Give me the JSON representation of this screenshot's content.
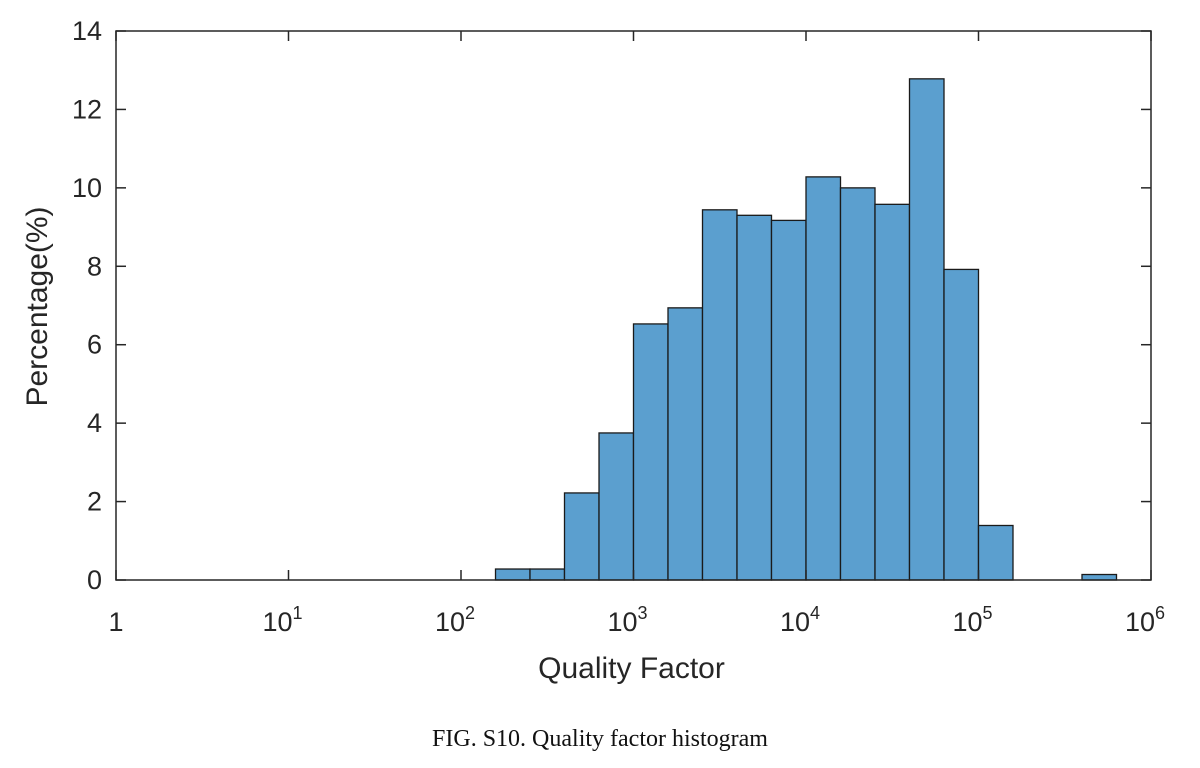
{
  "chart_data": {
    "type": "bar",
    "xlabel": "Quality Factor",
    "ylabel": "Percentage(%)",
    "x_scale": "log",
    "xlim": [
      1,
      1000000
    ],
    "ylim": [
      0,
      14
    ],
    "grid": false,
    "legend": "none",
    "x_ticks": [
      {
        "value": 1,
        "base": "1",
        "exp": ""
      },
      {
        "value": 10,
        "base": "10",
        "exp": "1"
      },
      {
        "value": 100,
        "base": "10",
        "exp": "2"
      },
      {
        "value": 1000,
        "base": "10",
        "exp": "3"
      },
      {
        "value": 10000,
        "base": "10",
        "exp": "4"
      },
      {
        "value": 100000,
        "base": "10",
        "exp": "5"
      },
      {
        "value": 1000000,
        "base": "10",
        "exp": "6"
      }
    ],
    "y_ticks": [
      0,
      2,
      4,
      6,
      8,
      10,
      12,
      14
    ],
    "bin_edges": [
      158.5,
      251.2,
      398.1,
      631.0,
      1000,
      1584.9,
      2511.9,
      3981.1,
      6309.6,
      10000,
      15848.9,
      25118.9,
      39810.7,
      63095.7,
      100000,
      158489.3,
      251188.6,
      398107.2,
      630957.3
    ],
    "values": [
      0.28,
      0.28,
      2.22,
      3.75,
      6.53,
      6.94,
      9.44,
      9.3,
      9.17,
      10.28,
      10.0,
      9.58,
      12.78,
      7.92,
      1.39,
      0,
      0,
      0.14
    ],
    "bar_color": "#5b9fcf"
  },
  "caption": "FIG. S10. Quality factor histogram"
}
